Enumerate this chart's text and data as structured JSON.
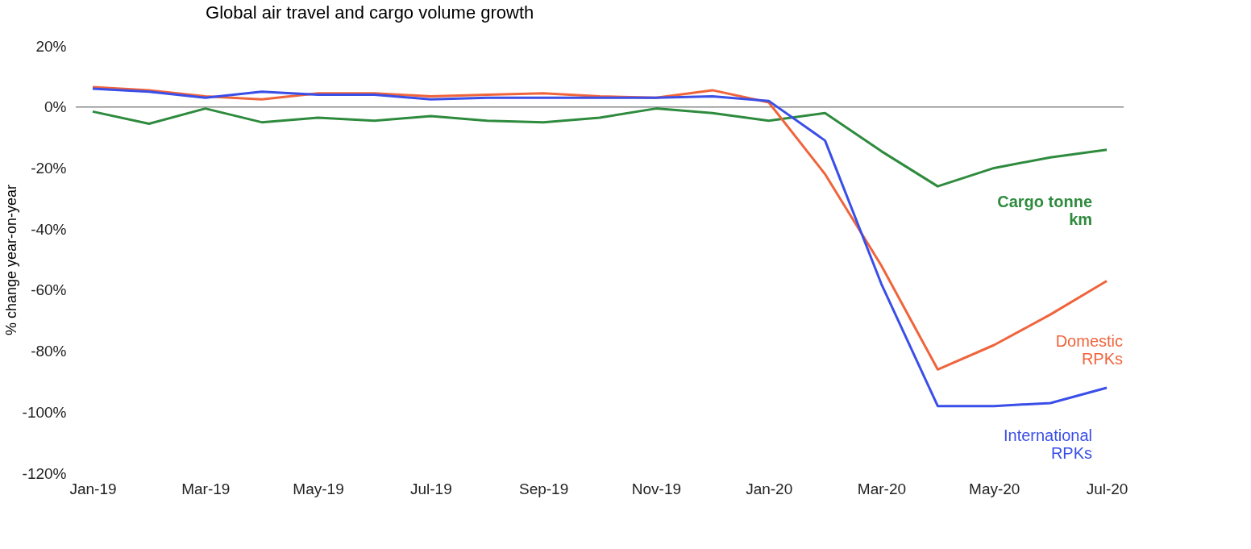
{
  "chart_data": {
    "type": "line",
    "title": "Global air travel and cargo volume growth",
    "ylabel": "% change year-on-year",
    "categories": [
      "Jan-19",
      null,
      "Mar-19",
      null,
      "May-19",
      null,
      "Jul-19",
      null,
      "Sep-19",
      null,
      "Nov-19",
      null,
      "Jan-20",
      null,
      "Mar-20",
      null,
      "May-20",
      null,
      "Jul-20"
    ],
    "series": [
      {
        "name": "Cargo tonne\nkm",
        "color": "#2e8b3e",
        "values": [
          -1.5,
          -5.5,
          -0.5,
          -5,
          -3.5,
          -4.5,
          -3,
          -4.5,
          -5,
          -3.5,
          -0.5,
          -2,
          -4.5,
          -2,
          -14.5,
          -26,
          -20,
          -16.5,
          -14
        ]
      },
      {
        "name": "Domestic\nRPKs",
        "color": "#f0643c",
        "values": [
          6.5,
          5.5,
          3.5,
          2.5,
          4.5,
          4.5,
          3.5,
          4,
          4.5,
          3.5,
          3,
          5.5,
          1.5,
          -22,
          -52,
          -86,
          -78,
          -68,
          -57
        ]
      },
      {
        "name": "International\nRPKs",
        "color": "#3a4ee8",
        "values": [
          6,
          5,
          3,
          5,
          4,
          4,
          2.5,
          3,
          3,
          3,
          3,
          3.5,
          2,
          -11,
          -58,
          -98,
          -98,
          -97,
          -92
        ]
      }
    ],
    "ylim": [
      -120,
      20
    ],
    "yticks": [
      {
        "value": -120,
        "label": "-120%"
      },
      {
        "value": -100,
        "label": "-100%"
      },
      {
        "value": -80,
        "label": "-80%"
      },
      {
        "value": -60,
        "label": "-60%"
      },
      {
        "value": -40,
        "label": "-40%"
      },
      {
        "value": -20,
        "label": "-20%"
      },
      {
        "value": 0,
        "label": "0%"
      },
      {
        "value": 20,
        "label": "20%"
      }
    ],
    "ref_lines": [
      {
        "axis": "y",
        "value": 0,
        "color": "#888888"
      }
    ],
    "grid": false,
    "marker": "none",
    "line_style": "solid"
  }
}
